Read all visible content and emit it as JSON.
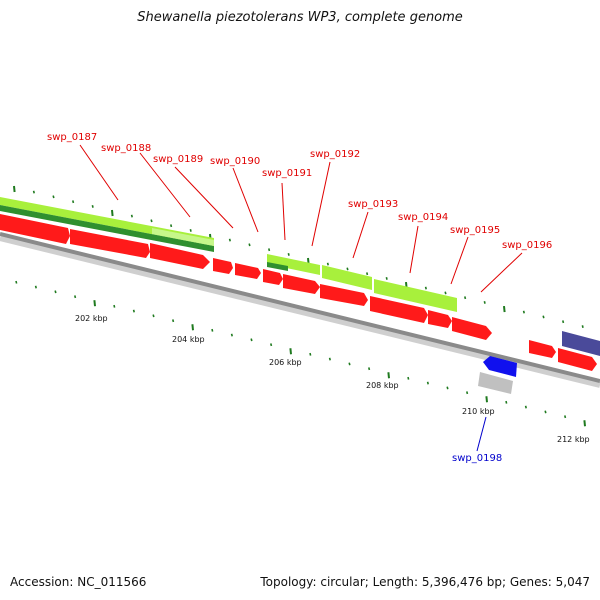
{
  "title": "Shewanella piezotolerans WP3, complete genome",
  "footer": {
    "accession": "Accession: NC_011566",
    "stats": "Topology: circular; Length: 5,396,476 bp; Genes: 5,047"
  },
  "colors": {
    "background": "#ffffff",
    "backbone": "#8a8a8a",
    "tick": "#1f7a1f",
    "forward_gene": "#ff1a1a",
    "reverse_gene": "#3a3adf",
    "rna_gene": "#c0c0c0",
    "cds_light": "#a8f03c",
    "cds_dark": "#2f8f2f",
    "other_track": "#4a4a9a",
    "label_red": "#e00000",
    "label_blue": "#0000cc"
  },
  "scale_labels": [
    {
      "kbp": 202,
      "text": "202 kbp"
    },
    {
      "kbp": 204,
      "text": "204 kbp"
    },
    {
      "kbp": 206,
      "text": "206 kbp"
    },
    {
      "kbp": 208,
      "text": "208 kbp"
    },
    {
      "kbp": 210,
      "text": "210 kbp"
    },
    {
      "kbp": 212,
      "text": "212 kbp"
    }
  ],
  "genes": [
    {
      "name": "swp_0187",
      "color": "red"
    },
    {
      "name": "swp_0188",
      "color": "red"
    },
    {
      "name": "swp_0189",
      "color": "red"
    },
    {
      "name": "swp_0190",
      "color": "red"
    },
    {
      "name": "swp_0191",
      "color": "red"
    },
    {
      "name": "swp_0192",
      "color": "red"
    },
    {
      "name": "swp_0193",
      "color": "red"
    },
    {
      "name": "swp_0194",
      "color": "red"
    },
    {
      "name": "swp_0195",
      "color": "red"
    },
    {
      "name": "swp_0196",
      "color": "red"
    },
    {
      "name": "swp_0198",
      "color": "blue"
    }
  ]
}
